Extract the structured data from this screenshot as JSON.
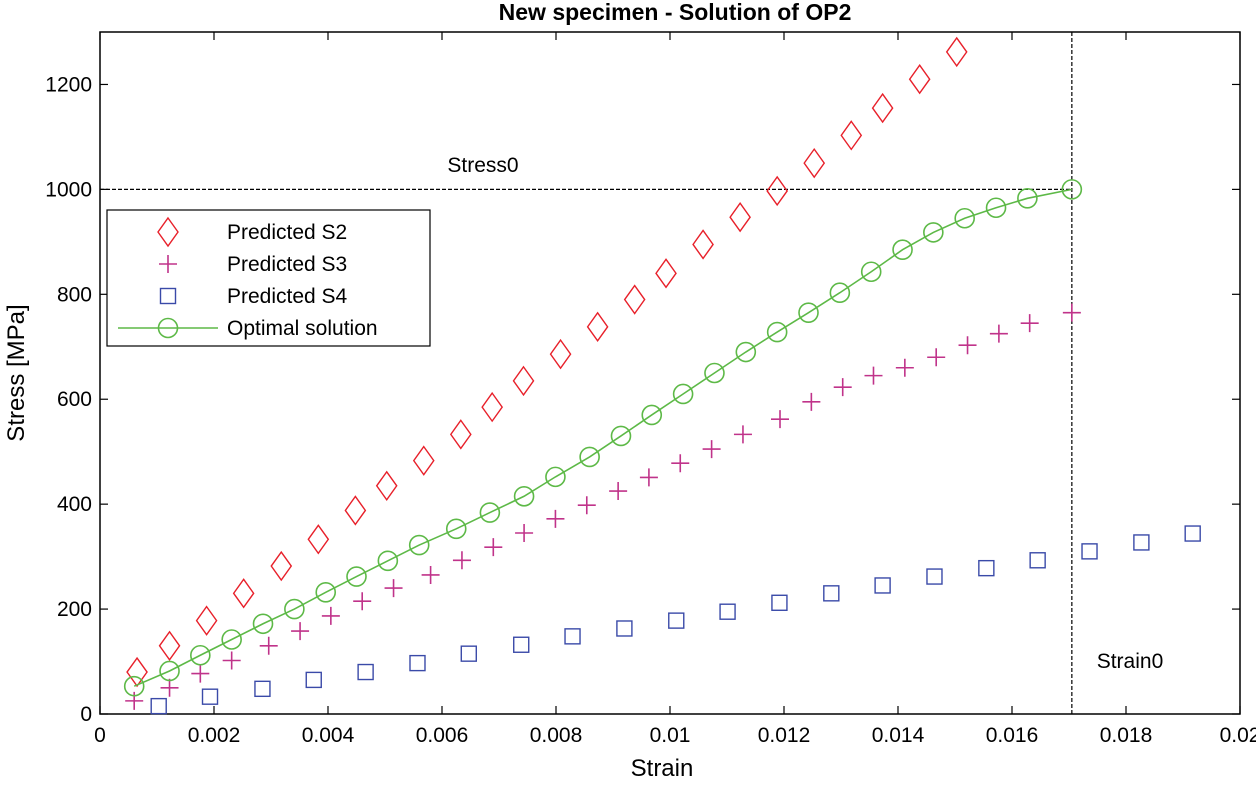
{
  "chart_data": {
    "type": "scatter",
    "title": "New specimen - Solution of OP2",
    "xlabel": "Strain",
    "ylabel": "Stress [MPa]",
    "xlim": [
      0,
      0.02
    ],
    "ylim": [
      0,
      1300
    ],
    "xticks": [
      0,
      0.002,
      0.004,
      0.006,
      0.008,
      0.01,
      0.012,
      0.014,
      0.016,
      0.018,
      0.02
    ],
    "xtick_labels": [
      "0",
      "0.002",
      "0.004",
      "0.006",
      "0.008",
      "0.01",
      "0.012",
      "0.014",
      "0.016",
      "0.018",
      "0.02"
    ],
    "yticks": [
      0,
      200,
      400,
      600,
      800,
      1000,
      1200
    ],
    "ytick_labels": [
      "0",
      "200",
      "400",
      "600",
      "800",
      "1000",
      "1200"
    ],
    "grid": false,
    "legend_position": "middle-left",
    "annotations": [
      {
        "text": "Stress0"
      },
      {
        "text": "Strain0"
      }
    ],
    "reference_lines": {
      "stress0": 1000,
      "strain0": 0.01705
    },
    "series": [
      {
        "name": "Predicted S2",
        "marker": "diamond",
        "color": "#e8202a",
        "line": false,
        "x": [
          0.00065,
          0.00122,
          0.00187,
          0.00252,
          0.00318,
          0.00383,
          0.00448,
          0.00503,
          0.00568,
          0.00633,
          0.00688,
          0.00743,
          0.00808,
          0.00873,
          0.00938,
          0.00993,
          0.01058,
          0.01123,
          0.01188,
          0.01253,
          0.01318,
          0.01373,
          0.01438,
          0.01503
        ],
        "y": [
          80,
          130,
          178,
          230,
          282,
          333,
          388,
          435,
          483,
          533,
          585,
          635,
          686,
          738,
          790,
          840,
          895,
          947,
          997,
          1050,
          1103,
          1155,
          1210,
          1262
        ]
      },
      {
        "name": "Predicted S3",
        "marker": "plus",
        "color": "#c0338a",
        "line": false,
        "x": [
          0.0006,
          0.00122,
          0.00176,
          0.00231,
          0.00296,
          0.00351,
          0.00405,
          0.0046,
          0.00515,
          0.0058,
          0.00635,
          0.0069,
          0.00744,
          0.00799,
          0.00854,
          0.00909,
          0.00963,
          0.01018,
          0.01073,
          0.01128,
          0.01193,
          0.01248,
          0.01303,
          0.01357,
          0.01412,
          0.01467,
          0.01522,
          0.01577,
          0.01631,
          0.01705
        ],
        "y": [
          25,
          50,
          77,
          102,
          130,
          158,
          187,
          215,
          240,
          265,
          293,
          318,
          345,
          372,
          398,
          425,
          451,
          478,
          505,
          533,
          562,
          595,
          623,
          645,
          660,
          680,
          703,
          725,
          745,
          765
        ]
      },
      {
        "name": "Predicted S4",
        "marker": "square",
        "color": "#3a4aa8",
        "line": false,
        "x": [
          0.00103,
          0.00193,
          0.00285,
          0.00375,
          0.00466,
          0.00557,
          0.00647,
          0.00739,
          0.00829,
          0.0092,
          0.01011,
          0.01101,
          0.01192,
          0.01283,
          0.01373,
          0.01464,
          0.01555,
          0.01645,
          0.01736,
          0.01827,
          0.01917
        ],
        "y": [
          15,
          33,
          48,
          65,
          80,
          97,
          115,
          132,
          148,
          163,
          178,
          195,
          212,
          230,
          245,
          262,
          278,
          293,
          310,
          327,
          344
        ]
      },
      {
        "name": "Optimal solution",
        "marker": "circle",
        "color": "#5db947",
        "line": true,
        "x": [
          0.0006,
          0.00122,
          0.00176,
          0.00231,
          0.00286,
          0.00341,
          0.00396,
          0.0045,
          0.00505,
          0.0056,
          0.00625,
          0.00684,
          0.00744,
          0.00799,
          0.00859,
          0.00914,
          0.00968,
          0.01023,
          0.01078,
          0.01133,
          0.01188,
          0.01243,
          0.01298,
          0.01353,
          0.01408,
          0.01462,
          0.01517,
          0.01572,
          0.01627,
          0.01705
        ],
        "y": [
          53,
          82,
          112,
          142,
          172,
          200,
          232,
          262,
          292,
          322,
          353,
          384,
          415,
          452,
          490,
          530,
          570,
          610,
          650,
          690,
          728,
          765,
          803,
          843,
          885,
          918,
          945,
          965,
          983,
          1000
        ]
      }
    ]
  }
}
